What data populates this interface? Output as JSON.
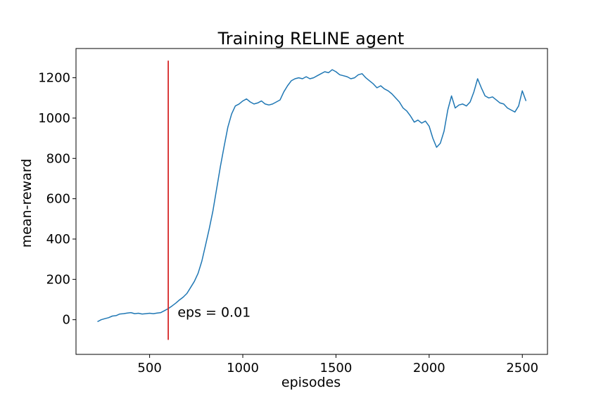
{
  "chart_data": {
    "type": "line",
    "title": "Training RELINE agent",
    "xlabel": "episodes",
    "ylabel": "mean-reward",
    "xlim": [
      105,
      2635
    ],
    "ylim": [
      -172,
      1345
    ],
    "xticks": [
      500,
      1000,
      1500,
      2000,
      2500
    ],
    "yticks": [
      0,
      200,
      400,
      600,
      800,
      1000,
      1200
    ],
    "grid": false,
    "legend": "none",
    "series": [
      {
        "color": "#1f77b4",
        "x": [
          220,
          240,
          260,
          280,
          300,
          320,
          340,
          360,
          380,
          400,
          420,
          440,
          460,
          480,
          500,
          520,
          540,
          560,
          580,
          600,
          620,
          640,
          660,
          680,
          700,
          720,
          740,
          760,
          780,
          800,
          820,
          840,
          860,
          880,
          900,
          920,
          940,
          960,
          980,
          1000,
          1020,
          1040,
          1060,
          1080,
          1100,
          1120,
          1140,
          1160,
          1180,
          1200,
          1220,
          1240,
          1260,
          1280,
          1300,
          1320,
          1340,
          1360,
          1380,
          1400,
          1420,
          1440,
          1460,
          1480,
          1500,
          1520,
          1540,
          1560,
          1580,
          1600,
          1620,
          1640,
          1660,
          1680,
          1700,
          1720,
          1740,
          1760,
          1780,
          1800,
          1820,
          1840,
          1860,
          1880,
          1900,
          1920,
          1940,
          1960,
          1980,
          2000,
          2020,
          2040,
          2060,
          2080,
          2100,
          2120,
          2140,
          2160,
          2180,
          2200,
          2220,
          2240,
          2260,
          2280,
          2300,
          2320,
          2340,
          2360,
          2380,
          2400,
          2420,
          2440,
          2460,
          2480,
          2500,
          2520
        ],
        "y": [
          -10,
          0,
          5,
          10,
          18,
          20,
          28,
          30,
          33,
          35,
          30,
          32,
          28,
          30,
          32,
          30,
          33,
          35,
          45,
          55,
          68,
          82,
          98,
          112,
          130,
          160,
          190,
          230,
          290,
          370,
          450,
          540,
          650,
          760,
          860,
          955,
          1020,
          1060,
          1070,
          1085,
          1095,
          1080,
          1070,
          1075,
          1085,
          1070,
          1065,
          1070,
          1080,
          1090,
          1130,
          1160,
          1185,
          1195,
          1200,
          1195,
          1205,
          1195,
          1200,
          1210,
          1220,
          1230,
          1225,
          1240,
          1230,
          1215,
          1210,
          1205,
          1195,
          1200,
          1215,
          1220,
          1200,
          1185,
          1170,
          1150,
          1160,
          1145,
          1135,
          1120,
          1100,
          1080,
          1050,
          1035,
          1010,
          980,
          990,
          975,
          985,
          960,
          900,
          855,
          875,
          935,
          1040,
          1110,
          1050,
          1065,
          1070,
          1060,
          1080,
          1130,
          1195,
          1150,
          1110,
          1100,
          1105,
          1090,
          1075,
          1070,
          1050,
          1040,
          1030,
          1060,
          1135,
          1085
        ]
      }
    ],
    "vline": {
      "x": 600,
      "y_from": -100,
      "y_to": 1285,
      "color": "#d62728"
    },
    "annotation": {
      "text": "eps = 0.01",
      "x": 650,
      "y": 15
    }
  }
}
